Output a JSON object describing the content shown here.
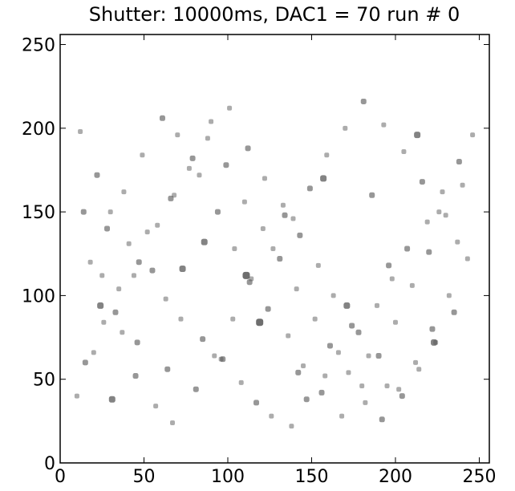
{
  "chart_data": {
    "type": "image",
    "title": "Shutter: 10000ms, DAC1 = 70 run # 0",
    "xlim": [
      0,
      256
    ],
    "ylim": [
      0,
      256
    ],
    "xticks": [
      0,
      50,
      100,
      150,
      200,
      250
    ],
    "yticks": [
      0,
      50,
      100,
      150,
      200,
      250
    ],
    "color": "#555555",
    "x": [
      12,
      22,
      30,
      41,
      55,
      63,
      72,
      85,
      96,
      108,
      117,
      126,
      138,
      147,
      158,
      166,
      178,
      189,
      198,
      207,
      219,
      228,
      238,
      246,
      15,
      26,
      35,
      47,
      58,
      68,
      79,
      90,
      101,
      112,
      122,
      133,
      143,
      154,
      163,
      174,
      184,
      195,
      204,
      214,
      224,
      235,
      10,
      20,
      33,
      44,
      52,
      66,
      77,
      88,
      99,
      110,
      121,
      131,
      141,
      152,
      161,
      172,
      182,
      192,
      202,
      212,
      222,
      232,
      243,
      18,
      28,
      38,
      49,
      61,
      70,
      83,
      94,
      104,
      114,
      124,
      136,
      145,
      156,
      168,
      180,
      190,
      200,
      210,
      220,
      230,
      240,
      14,
      25,
      37,
      45,
      57,
      67,
      81,
      92,
      103,
      113,
      127,
      139,
      149,
      159,
      170,
      181,
      193,
      205,
      216,
      226,
      237,
      24,
      46,
      73,
      97,
      119,
      142,
      171,
      196,
      223,
      31,
      64,
      86,
      111,
      134,
      157,
      186,
      213
    ],
    "y": [
      198,
      172,
      150,
      131,
      115,
      98,
      86,
      74,
      62,
      48,
      36,
      28,
      22,
      38,
      52,
      66,
      78,
      94,
      110,
      128,
      144,
      162,
      180,
      196,
      60,
      84,
      104,
      120,
      142,
      160,
      182,
      204,
      212,
      188,
      170,
      154,
      136,
      118,
      100,
      82,
      64,
      46,
      40,
      56,
      72,
      90,
      40,
      66,
      90,
      112,
      138,
      158,
      176,
      194,
      178,
      156,
      140,
      122,
      104,
      86,
      70,
      54,
      36,
      26,
      44,
      60,
      80,
      100,
      122,
      120,
      140,
      162,
      184,
      206,
      196,
      172,
      150,
      128,
      110,
      92,
      76,
      58,
      42,
      28,
      46,
      64,
      84,
      106,
      126,
      148,
      166,
      150,
      112,
      78,
      52,
      34,
      24,
      44,
      64,
      86,
      108,
      128,
      146,
      164,
      184,
      200,
      216,
      202,
      186,
      168,
      150,
      132,
      94,
      72,
      116,
      62,
      84,
      54,
      94,
      118,
      72,
      38,
      56,
      132,
      112,
      148,
      170,
      160,
      196
    ],
    "values": [
      2,
      3,
      2,
      2,
      3,
      2,
      2,
      3,
      2,
      2,
      3,
      2,
      2,
      3,
      2,
      2,
      3,
      2,
      2,
      3,
      2,
      2,
      3,
      2,
      3,
      2,
      2,
      3,
      2,
      2,
      3,
      2,
      2,
      3,
      2,
      2,
      3,
      2,
      2,
      3,
      2,
      2,
      3,
      2,
      2,
      3,
      2,
      2,
      3,
      2,
      2,
      3,
      2,
      2,
      3,
      2,
      2,
      3,
      2,
      2,
      3,
      2,
      2,
      3,
      2,
      2,
      3,
      2,
      2,
      2,
      3,
      2,
      2,
      3,
      2,
      2,
      3,
      2,
      2,
      3,
      2,
      2,
      3,
      2,
      2,
      3,
      2,
      2,
      3,
      2,
      2,
      3,
      2,
      2,
      3,
      2,
      2,
      3,
      2,
      2,
      3,
      2,
      2,
      3,
      2,
      2,
      3,
      2,
      2,
      3,
      2,
      2,
      4,
      3,
      4,
      3,
      5,
      3,
      4,
      3,
      4,
      4,
      3,
      4,
      5,
      3,
      4,
      3,
      4
    ]
  }
}
